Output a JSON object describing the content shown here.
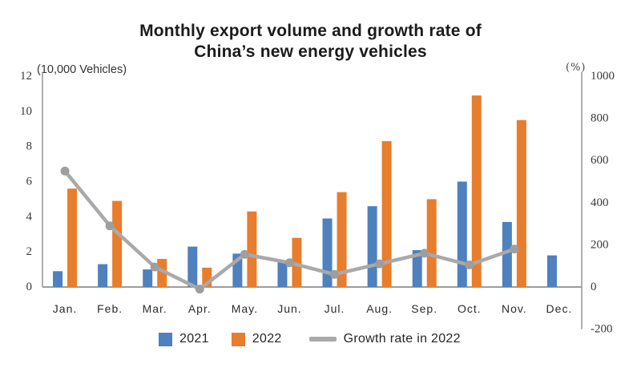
{
  "title": {
    "line1": "Monthly export volume and growth rate of",
    "line2": "China’s new energy vehicles"
  },
  "axes": {
    "left_unit_label": "(10,000 Vehicles)",
    "right_unit_label": "(%)",
    "left_ticks": [
      12,
      10,
      8,
      6,
      4,
      2,
      0
    ],
    "right_ticks": [
      1000,
      800,
      600,
      400,
      200,
      0,
      -200
    ],
    "negative_tick_color": "#d93025"
  },
  "legend": {
    "items": [
      {
        "label": "2021",
        "swatch": "square",
        "color": "#4e81bd"
      },
      {
        "label": "2022",
        "swatch": "square",
        "color": "#e87d2e"
      },
      {
        "label": "Growth rate in 2022",
        "swatch": "line",
        "color": "#a9a9a9"
      }
    ]
  },
  "colors": {
    "bar_2021": "#4e81bd",
    "bar_2022": "#e87d2e",
    "growth_line": "#a9a9a9",
    "growth_marker": "#9e9e9e",
    "axis_line": "#9d9d9d",
    "negative_tick": "#d93025"
  },
  "chart_data": {
    "type": "bar",
    "subtype": "grouped-bars-with-line-overlay",
    "title": "Monthly export volume and growth rate of China’s new energy vehicles",
    "categories": [
      "Jan.",
      "Feb.",
      "Mar.",
      "Apr.",
      "May.",
      "Jun.",
      "Jul.",
      "Aug.",
      "Sep.",
      "Oct.",
      "Nov.",
      "Dec."
    ],
    "series": [
      {
        "name": "2021",
        "type": "bar",
        "axis": "left",
        "color": "#4e81bd",
        "values": [
          0.9,
          1.3,
          1.0,
          2.3,
          1.9,
          1.4,
          3.9,
          4.6,
          2.1,
          6.0,
          3.7,
          1.8
        ]
      },
      {
        "name": "2022",
        "type": "bar",
        "axis": "left",
        "color": "#e87d2e",
        "values": [
          5.6,
          4.9,
          1.6,
          1.1,
          4.3,
          2.8,
          5.4,
          8.3,
          5.0,
          10.9,
          9.5,
          null
        ]
      },
      {
        "name": "Growth rate in 2022",
        "type": "line",
        "axis": "right",
        "color": "#a9a9a9",
        "values": [
          550,
          290,
          95,
          -10,
          155,
          115,
          60,
          110,
          160,
          105,
          180,
          null
        ]
      }
    ],
    "left_axis": {
      "label": "(10,000 Vehicles)",
      "range": [
        0,
        12
      ],
      "ticks": [
        0,
        2,
        4,
        6,
        8,
        10,
        12
      ]
    },
    "right_axis": {
      "label": "(%)",
      "range": [
        -200,
        1000
      ],
      "ticks": [
        -200,
        0,
        200,
        400,
        600,
        800,
        1000
      ]
    },
    "grid": false,
    "legend_position": "bottom"
  }
}
